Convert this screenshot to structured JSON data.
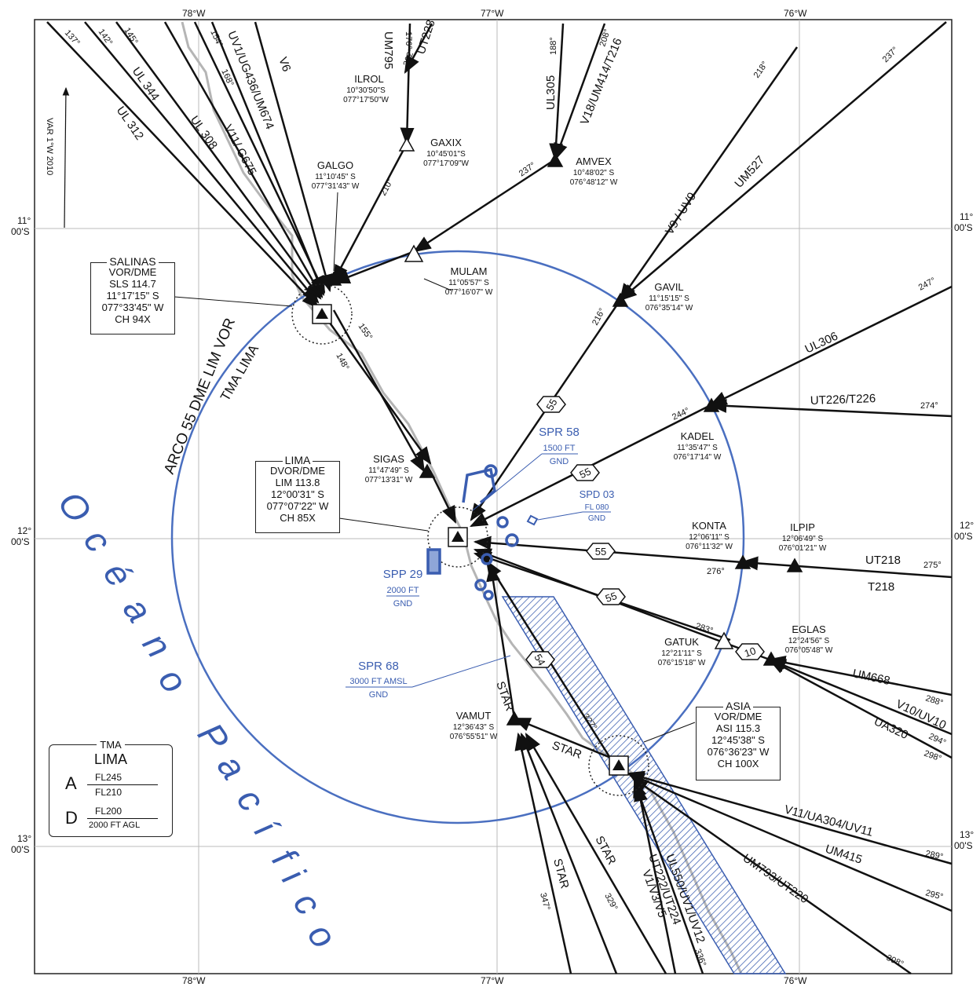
{
  "header": {
    "top_left": "",
    "top_right": ""
  },
  "grid": {
    "lon_top": [
      "78°W",
      "77°W",
      "76°W"
    ],
    "lon_bottom": [
      "78°W",
      "77°W",
      "76°W"
    ],
    "lat_left": [
      [
        "11°",
        "00'S"
      ],
      [
        "12°",
        "00'S"
      ],
      [
        "13°",
        "00'S"
      ]
    ],
    "lat_right": [
      [
        "11°",
        "00'S"
      ],
      [
        "12°",
        "00'S"
      ],
      [
        "13°",
        "00'S"
      ]
    ]
  },
  "variation": "VAR 1°W 2010",
  "ocean": [
    "O",
    "c",
    "é",
    "a",
    "n",
    "o",
    " ",
    "P",
    "a",
    "c",
    "í",
    "f",
    "i",
    "c",
    "o"
  ],
  "arc_label": "ARCO 55 DME LIM VOR",
  "tma_arc_label": "TMA LIMA",
  "navaids": {
    "salinas": {
      "title": "SALINAS",
      "lines": [
        "VOR/DME",
        "SLS 114.7",
        "11°17'15\" S",
        "077°33'45\" W",
        "CH 94X"
      ]
    },
    "lima": {
      "title": "LIMA",
      "lines": [
        "DVOR/DME",
        "LIM 113.8",
        "12°00'31\" S",
        "077°07'22\" W",
        "CH 85X"
      ]
    },
    "asia": {
      "title": "ASIA",
      "lines": [
        "VOR/DME",
        "ASI 115.3",
        "12°45'38\" S",
        "076°36'23\" W",
        "CH 100X"
      ]
    }
  },
  "fixes": [
    {
      "name": "ILROL",
      "lat": "10°30'50\"S",
      "lon": "077°17'50\"W"
    },
    {
      "name": "GAXIX",
      "lat": "10°45'01\"S",
      "lon": "077°17'09\"W"
    },
    {
      "name": "GALGO",
      "lat": "11°10'45\" S",
      "lon": "077°31'43\" W"
    },
    {
      "name": "AMVEX",
      "lat": "10°48'02\" S",
      "lon": "076°48'12\" W"
    },
    {
      "name": "MULAM",
      "lat": "11°05'57\" S",
      "lon": "077°16'07\" W"
    },
    {
      "name": "GAVIL",
      "lat": "11°15'15\" S",
      "lon": "076°35'14\" W"
    },
    {
      "name": "SIGAS",
      "lat": "11°47'49\" S",
      "lon": "077°13'31\" W"
    },
    {
      "name": "KADEL",
      "lat": "11°35'47\" S",
      "lon": "076°17'14\" W"
    },
    {
      "name": "KONTA",
      "lat": "12°06'11\" S",
      "lon": "076°11'32\" W"
    },
    {
      "name": "ILPIP",
      "lat": "12°06'49\" S",
      "lon": "076°01'21\" W"
    },
    {
      "name": "GATUK",
      "lat": "12°21'11\" S",
      "lon": "076°15'18\" W"
    },
    {
      "name": "EGLAS",
      "lat": "12°24'56\" S",
      "lon": "076°05'48\" W"
    },
    {
      "name": "VAMUT",
      "lat": "12°36'43\" S",
      "lon": "076°55'51\" W"
    }
  ],
  "airways": [
    "UL 312",
    "UL 344",
    "UL 308",
    "V11/ G675",
    "UV1/UG436/UM674",
    "V6",
    "UM795",
    "UT228",
    "UL305",
    "V18/UM414/T216",
    "V9 / UV9",
    "UM527",
    "UL306",
    "UT226/T226",
    "UT218",
    "T218",
    "UM668",
    "V10/UV10",
    "UA320",
    "V11/UA304/UV11",
    "UM415",
    "UM793/UT220",
    "UL550/UV1/UV12",
    "UT222/UT224",
    "V1/V3/V5"
  ],
  "stars": [
    "STAR",
    "STAR",
    "STAR",
    "STAR",
    "STAR"
  ],
  "bearings": [
    "137°",
    "142°",
    "145°",
    "154°",
    "168°",
    "176°",
    "202°",
    "210°",
    "188°",
    "208°",
    "237°",
    "237°",
    "218°",
    "237°",
    "216°",
    "155°",
    "148°",
    "247°",
    "244°",
    "274°",
    "275°",
    "276°",
    "283°",
    "288°",
    "294°",
    "298°",
    "289°",
    "295°",
    "308°",
    "327°",
    "347°",
    "329°",
    "336°"
  ],
  "dme": [
    "55",
    "55",
    "55",
    "55",
    "10",
    "54"
  ],
  "special": {
    "spr58": {
      "name": "SPR 58",
      "top": "1500 FT",
      "bot": "GND"
    },
    "spd03": {
      "name": "SPD 03",
      "top": "FL 080",
      "bot": "GND"
    },
    "spp29": {
      "name": "SPP 29",
      "top": "2000 FT",
      "bot": "GND"
    },
    "spr68": {
      "name": "SPR 68",
      "top": "3000 FT AMSL",
      "bot": "GND"
    }
  },
  "tma_box": {
    "title": "TMA",
    "name": "LIMA",
    "a": "A",
    "a_top": "FL245",
    "a_bot": "FL210",
    "d": "D",
    "d_top": "FL200",
    "d_bot": "2000 FT AGL"
  },
  "colors": {
    "blue": "#3a5db0",
    "line": "#111111",
    "grid": "#bbbbbb",
    "coast": "#b5b5b5"
  }
}
